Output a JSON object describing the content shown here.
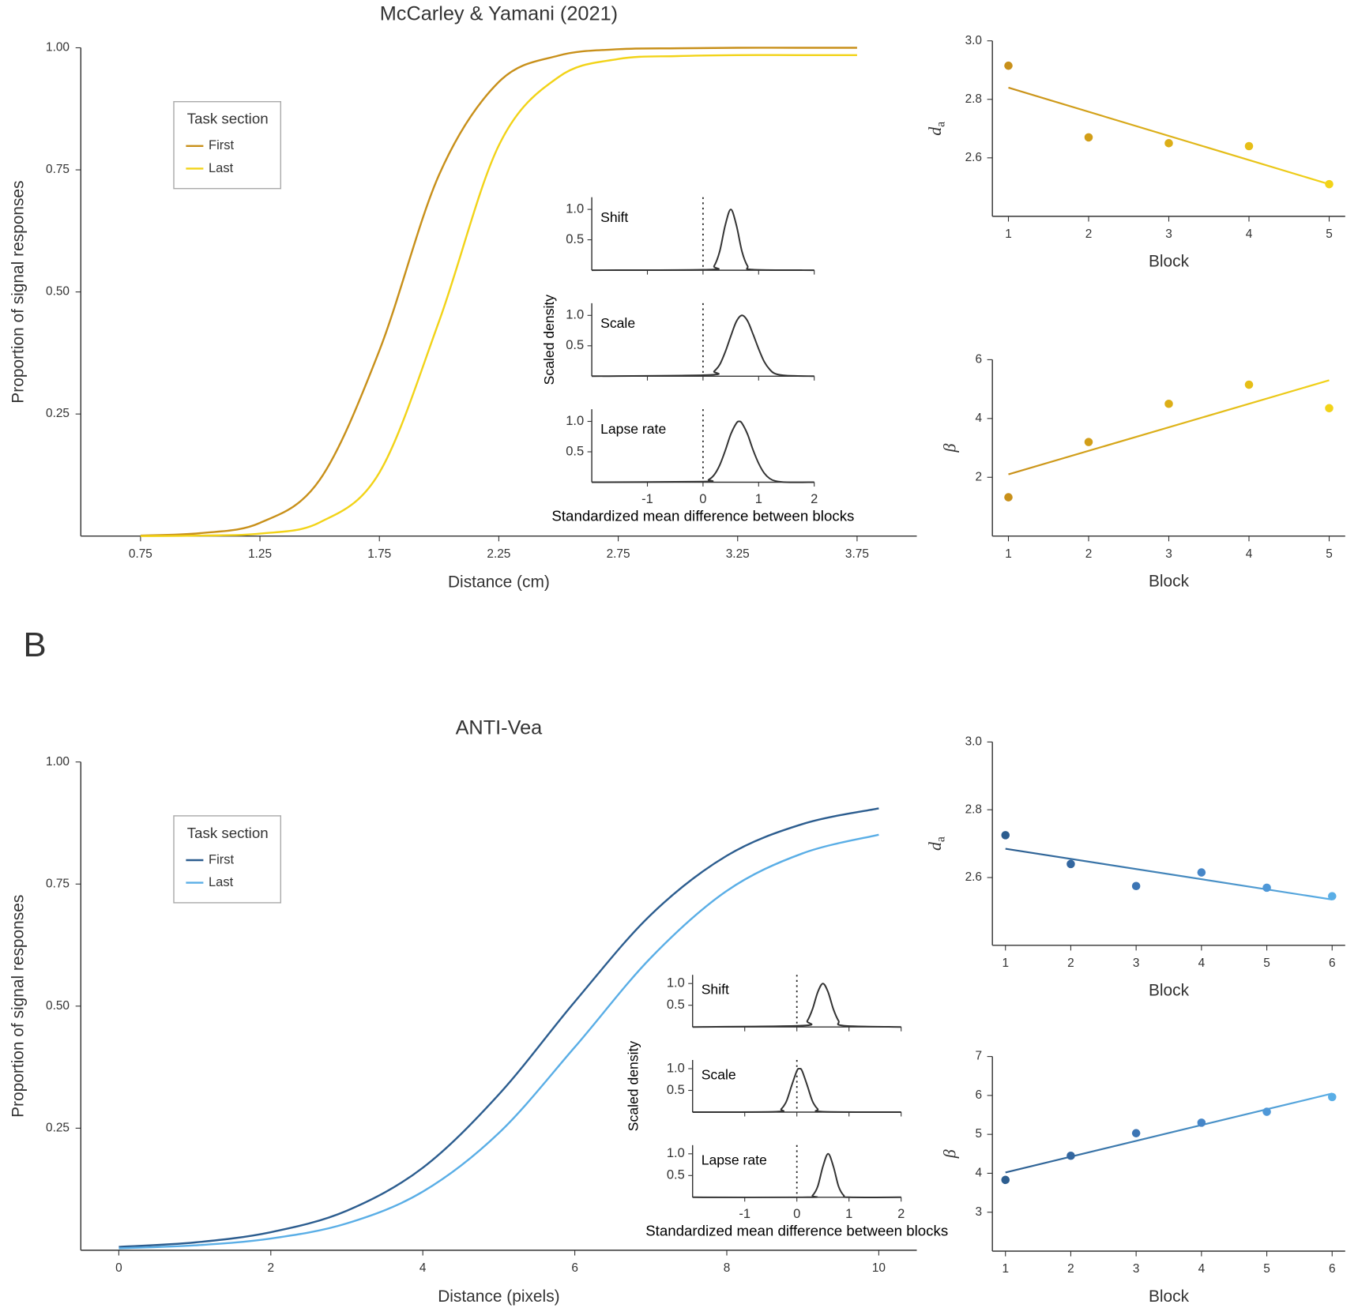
{
  "chart_data": [
    {
      "type": "line",
      "title": "McCarley & Yamani (2021)",
      "xlabel": "Distance (cm)",
      "ylabel": "Proportion of signal responses",
      "xlim": [
        0.5,
        4
      ],
      "ylim": [
        0,
        1
      ],
      "xticks": [
        0.75,
        1.25,
        1.75,
        2.25,
        2.75,
        3.25,
        3.75
      ],
      "yticks": [
        {
          "value": 0.25,
          "label": "0.25"
        },
        {
          "value": 0.5,
          "label": "0.50"
        },
        {
          "value": 0.75,
          "label": "0.75"
        },
        {
          "value": 1,
          "label": "1.00"
        }
      ],
      "legend_title": "Task section",
      "legend_position": "upper left",
      "x": [
        0.75,
        1,
        1.25,
        1.5,
        1.75,
        2,
        2.25,
        2.5,
        2.75,
        3,
        3.25,
        3.5,
        3.75
      ],
      "series": [
        {
          "name": "First",
          "color": "#c8901a",
          "values": [
            0.001,
            0.006,
            0.027,
            0.115,
            0.38,
            0.74,
            0.93,
            0.984,
            0.997,
            0.999,
            1,
            1,
            1
          ]
        },
        {
          "name": "Last",
          "color": "#f2d318",
          "values": [
            0,
            0.001,
            0.005,
            0.028,
            0.13,
            0.44,
            0.8,
            0.94,
            0.977,
            0.983,
            0.985,
            0.985,
            0.985
          ]
        }
      ]
    },
    {
      "type": "density_panels",
      "xlabel": "Standardized mean difference between blocks",
      "ylabel": "Scaled density",
      "xlim": [
        -2,
        2
      ],
      "ylim": [
        0,
        1.2
      ],
      "xticks": [
        -1,
        0,
        1,
        2
      ],
      "yticks": [
        {
          "value": 0.5,
          "label": "0.5"
        },
        {
          "value": 1,
          "label": "1.0"
        }
      ],
      "reference_line": 0,
      "color": "#333333",
      "panels": [
        {
          "label": "Shift",
          "x": [
            -2,
            0.1,
            0.2,
            0.3,
            0.4,
            0.5,
            0.6,
            0.7,
            0.8,
            0.9,
            2
          ],
          "values": [
            0,
            0.01,
            0.07,
            0.31,
            0.74,
            1,
            0.74,
            0.31,
            0.07,
            0.01,
            0
          ]
        },
        {
          "label": "Scale",
          "x": [
            -2,
            0.1,
            0.2,
            0.3,
            0.4,
            0.5,
            0.6,
            0.7,
            0.8,
            0.9,
            1,
            1.1,
            1.2,
            1.3,
            1.5,
            2
          ],
          "values": [
            0,
            0.02,
            0.08,
            0.19,
            0.4,
            0.66,
            0.9,
            1,
            0.91,
            0.69,
            0.45,
            0.24,
            0.11,
            0.04,
            0.01,
            0
          ]
        },
        {
          "label": "Lapse rate",
          "x": [
            -2,
            0,
            0.1,
            0.2,
            0.3,
            0.4,
            0.5,
            0.6,
            0.65,
            0.7,
            0.8,
            0.9,
            1,
            1.1,
            1.2,
            1.3,
            1.5,
            2
          ],
          "values": [
            0,
            0.01,
            0.04,
            0.12,
            0.28,
            0.52,
            0.79,
            0.97,
            1,
            0.97,
            0.79,
            0.53,
            0.31,
            0.15,
            0.06,
            0.02,
            0,
            0
          ]
        }
      ]
    },
    {
      "type": "scatter_trend",
      "ylabel": "d",
      "ylabel_subscript": "a",
      "xlabel": "Block",
      "xlim": [
        0.8,
        5.2
      ],
      "ylim": [
        2.4,
        3.0
      ],
      "xticks": [
        1,
        2,
        3,
        4,
        5
      ],
      "yticks": [
        {
          "value": 2.6,
          "label": "2.6"
        },
        {
          "value": 2.8,
          "label": "2.8"
        },
        {
          "value": 3,
          "label": "3.0"
        }
      ],
      "points": {
        "x": [
          1,
          2,
          3,
          4,
          5
        ],
        "values": [
          2.915,
          2.67,
          2.65,
          2.64,
          2.51
        ],
        "colors": [
          "#c8901a",
          "#d29e18",
          "#dcae17",
          "#e6be17",
          "#f2d318"
        ]
      },
      "trend": {
        "x": [
          1,
          5
        ],
        "values": [
          2.84,
          2.51
        ]
      }
    },
    {
      "type": "scatter_trend",
      "ylabel": "β",
      "xlabel": "Block",
      "xlim": [
        0.8,
        5.2
      ],
      "ylim": [
        0,
        6
      ],
      "xticks": [
        1,
        2,
        3,
        4,
        5
      ],
      "yticks": [
        2,
        4,
        6
      ],
      "points": {
        "x": [
          1,
          2,
          3,
          4,
          5
        ],
        "values": [
          1.32,
          3.2,
          4.5,
          5.15,
          4.35
        ],
        "colors": [
          "#c8901a",
          "#d29e18",
          "#dcae17",
          "#e6be17",
          "#f2d318"
        ]
      },
      "trend": {
        "x": [
          1,
          5
        ],
        "values": [
          2.1,
          5.3
        ]
      }
    },
    {
      "type": "line",
      "panel_label": "B",
      "title": "ANTI-Vea",
      "xlabel": "Distance (pixels)",
      "ylabel": "Proportion of signal responses",
      "xlim": [
        -0.5,
        10.5
      ],
      "ylim": [
        0,
        1
      ],
      "xticks": [
        0,
        2,
        4,
        6,
        8,
        10
      ],
      "yticks": [
        {
          "value": 0.25,
          "label": "0.25"
        },
        {
          "value": 0.5,
          "label": "0.50"
        },
        {
          "value": 0.75,
          "label": "0.75"
        },
        {
          "value": 1,
          "label": "1.00"
        }
      ],
      "legend_title": "Task section",
      "legend_position": "upper left",
      "x": [
        0,
        1,
        2,
        3,
        4,
        5,
        6,
        7,
        8,
        9,
        10
      ],
      "series": [
        {
          "name": "First",
          "color": "#2c5d8f",
          "values": [
            0.007,
            0.016,
            0.037,
            0.081,
            0.169,
            0.319,
            0.509,
            0.687,
            0.808,
            0.873,
            0.905
          ]
        },
        {
          "name": "Last",
          "color": "#5aaee6",
          "values": [
            0.004,
            0.01,
            0.024,
            0.055,
            0.12,
            0.24,
            0.416,
            0.599,
            0.736,
            0.813,
            0.851
          ]
        }
      ]
    },
    {
      "type": "density_panels",
      "xlabel": "Standardized mean difference between blocks",
      "ylabel": "Scaled density",
      "xlim": [
        -2,
        2
      ],
      "ylim": [
        0,
        1.2
      ],
      "xticks": [
        -1,
        0,
        1,
        2
      ],
      "yticks": [
        {
          "value": 0.5,
          "label": "0.5"
        },
        {
          "value": 1,
          "label": "1.0"
        }
      ],
      "reference_line": 0,
      "color": "#333333",
      "panels": [
        {
          "label": "Shift",
          "x": [
            -2,
            0.1,
            0.2,
            0.3,
            0.4,
            0.5,
            0.6,
            0.7,
            0.8,
            0.9,
            2
          ],
          "values": [
            0,
            0.03,
            0.14,
            0.41,
            0.8,
            1,
            0.8,
            0.41,
            0.14,
            0.03,
            0
          ]
        },
        {
          "label": "Scale",
          "x": [
            -2,
            -0.4,
            -0.3,
            -0.2,
            -0.1,
            0,
            0.05,
            0.1,
            0.2,
            0.3,
            0.4,
            0.5,
            2
          ],
          "values": [
            0,
            0.01,
            0.07,
            0.25,
            0.61,
            0.95,
            1,
            0.95,
            0.61,
            0.25,
            0.07,
            0.01,
            0
          ]
        },
        {
          "label": "Lapse rate",
          "x": [
            -2,
            0.2,
            0.3,
            0.4,
            0.5,
            0.6,
            0.7,
            0.8,
            0.9,
            1,
            2
          ],
          "values": [
            0,
            0,
            0.04,
            0.25,
            0.71,
            1,
            0.71,
            0.25,
            0.04,
            0,
            0
          ]
        }
      ]
    },
    {
      "type": "scatter_trend",
      "ylabel": "d",
      "ylabel_subscript": "a",
      "xlabel": "Block",
      "xlim": [
        0.8,
        6.2
      ],
      "ylim": [
        2.4,
        3.0
      ],
      "xticks": [
        1,
        2,
        3,
        4,
        5,
        6
      ],
      "yticks": [
        {
          "value": 2.6,
          "label": "2.6"
        },
        {
          "value": 2.8,
          "label": "2.8"
        },
        {
          "value": 3,
          "label": "3.0"
        }
      ],
      "points": {
        "x": [
          1,
          2,
          3,
          4,
          5,
          6
        ],
        "values": [
          2.725,
          2.64,
          2.575,
          2.615,
          2.57,
          2.545
        ],
        "colors": [
          "#2c5d8f",
          "#3467a0",
          "#3c75b4",
          "#4686c8",
          "#4f98d8",
          "#5aaee6"
        ]
      },
      "trend": {
        "x": [
          1,
          6
        ],
        "values": [
          2.685,
          2.535
        ]
      }
    },
    {
      "type": "scatter_trend",
      "ylabel": "β",
      "xlabel": "Block",
      "xlim": [
        0.8,
        6.2
      ],
      "ylim": [
        2,
        7
      ],
      "xticks": [
        1,
        2,
        3,
        4,
        5,
        6
      ],
      "yticks": [
        3,
        4,
        5,
        6,
        7
      ],
      "points": {
        "x": [
          1,
          2,
          3,
          4,
          5,
          6
        ],
        "values": [
          3.83,
          4.45,
          5.03,
          5.3,
          5.58,
          5.96
        ],
        "colors": [
          "#2c5d8f",
          "#3467a0",
          "#3c75b4",
          "#4686c8",
          "#4f98d8",
          "#5aaee6"
        ]
      },
      "trend": {
        "x": [
          1,
          6
        ],
        "values": [
          4.02,
          6.05
        ]
      }
    }
  ]
}
